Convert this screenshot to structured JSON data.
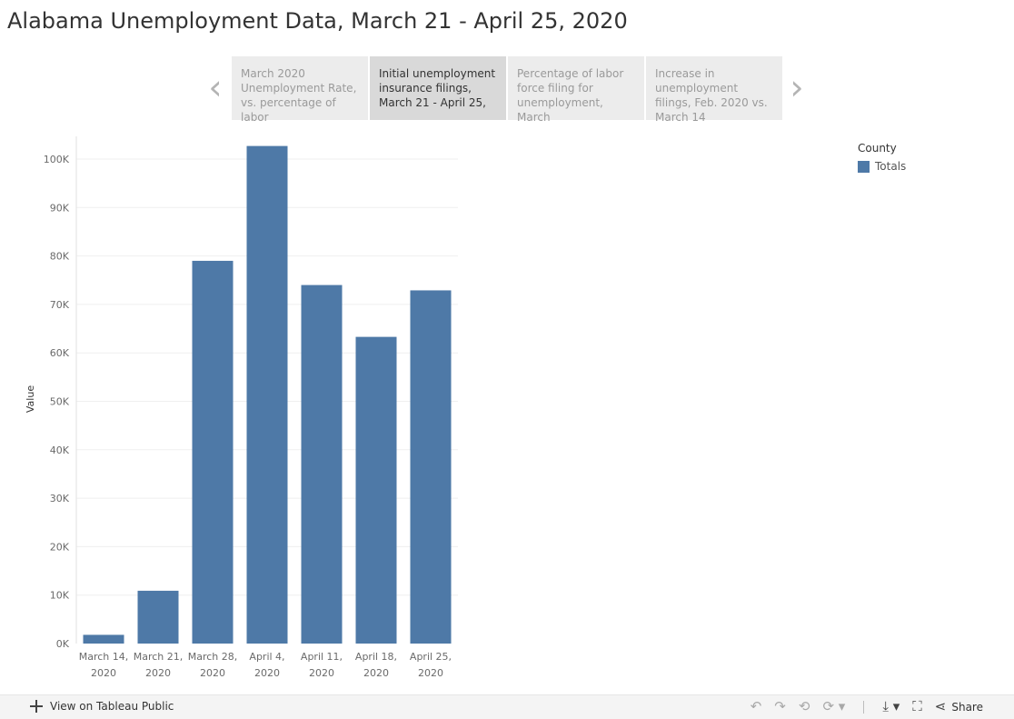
{
  "title": "Alabama Unemployment Data, March 21 - April 25, 2020",
  "story_points": [
    {
      "text": "March 2020 Unemployment Rate, vs. percentage of labor",
      "active": false
    },
    {
      "text": "Initial unemployment insurance filings, March 21 - April 25,",
      "active": true
    },
    {
      "text": "Percentage of labor force filing for unemployment, March",
      "active": false
    },
    {
      "text": "Increase in unemployment filings, Feb. 2020 vs. March 14",
      "active": false
    }
  ],
  "nav": {
    "prev_icon": "chevron-left-icon",
    "next_icon": "chevron-right-icon"
  },
  "legend": {
    "title": "County",
    "items": [
      {
        "label": "Totals",
        "color": "#4e79a7"
      }
    ]
  },
  "chart_data": {
    "type": "bar",
    "categories": [
      [
        "March 14,",
        "2020"
      ],
      [
        "March 21,",
        "2020"
      ],
      [
        "March 28,",
        "2020"
      ],
      [
        "April 4,",
        "2020"
      ],
      [
        "April 11,",
        "2020"
      ],
      [
        "April 18,",
        "2020"
      ],
      [
        "April 25,",
        "2020"
      ]
    ],
    "series": [
      {
        "name": "Totals",
        "values": [
          1800,
          10900,
          79000,
          102700,
          74000,
          63300,
          72900
        ]
      }
    ],
    "ylabel": "Value",
    "xlabel": "",
    "yticks": [
      0,
      10000,
      20000,
      30000,
      40000,
      50000,
      60000,
      70000,
      80000,
      90000,
      100000
    ],
    "ytick_labels": [
      "0K",
      "10K",
      "20K",
      "30K",
      "40K",
      "50K",
      "60K",
      "70K",
      "80K",
      "90K",
      "100K"
    ],
    "ylim": [
      0,
      105000
    ],
    "grid": true,
    "bar_color": "#4e79a7",
    "legend_position": "top-right"
  },
  "footer": {
    "view_label": "View on Tableau Public",
    "share_label": "Share",
    "undo_icon": "undo-icon",
    "redo_icon": "redo-icon",
    "revert_icon": "revert-icon",
    "refresh_icon": "refresh-icon",
    "download_icon": "download-icon",
    "fullscreen_icon": "fullscreen-icon",
    "share_icon": "share-icon"
  }
}
